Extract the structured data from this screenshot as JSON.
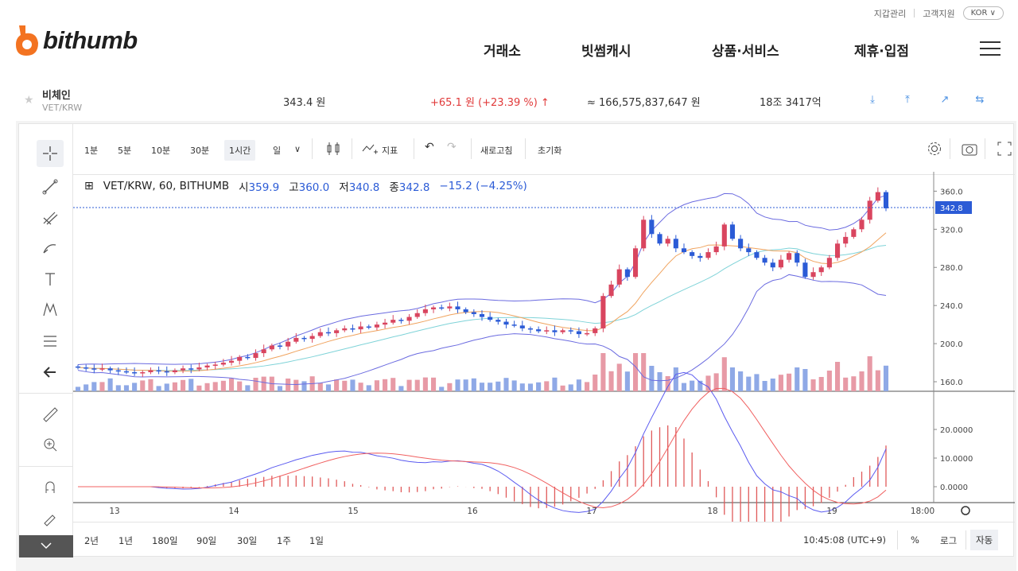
{
  "util": {
    "wallet": "지갑관리",
    "support": "고객지원",
    "lang": "KOR ∨"
  },
  "logo": {
    "text": "bithumb"
  },
  "nav": [
    "거래소",
    "빗썸캐시",
    "상품·서비스",
    "제휴·입점"
  ],
  "ticker": {
    "name": "비체인",
    "pair": "VET/KRW",
    "price": "343.4 원",
    "change": "+65.1 원 (+23.39 %) ↑",
    "amount": "≈ 166,575,837,647 원",
    "cap": "18조 3417억"
  },
  "toolbar": {
    "intervals": [
      "1분",
      "5분",
      "10분",
      "30분",
      "1시간",
      "일"
    ],
    "selected_interval": "1시간",
    "indicator": "지표",
    "refresh": "새로고침",
    "reset": "초기화"
  },
  "legend": {
    "symbol": "VET/KRW, 60, BITHUMB",
    "open_label": "시",
    "open": "359.9",
    "high_label": "고",
    "high": "360.0",
    "low_label": "저",
    "low": "340.8",
    "close_label": "종",
    "close": "342.8",
    "change": "−15.2 (−4.25%)"
  },
  "colors": {
    "up": "#d9455f",
    "down": "#2b5bd6",
    "accent": "#2b5bd6",
    "red": "#e13a3a"
  },
  "chart_data": {
    "type": "candlestick",
    "y_ticks": [
      "360.0",
      "320.0",
      "280.0",
      "240.0",
      "200.0",
      "160.0"
    ],
    "price_marker": "342.8",
    "macd_ticks": [
      "20.0000",
      "10.0000",
      "0.0000"
    ],
    "x_ticks": [
      "13",
      "14",
      "15",
      "16",
      "17",
      "18",
      "19",
      "18:00"
    ],
    "candles": [
      [
        176,
        175,
        176
      ],
      [
        175,
        174,
        174
      ],
      [
        174,
        173,
        173
      ],
      [
        173,
        174,
        174
      ],
      [
        174,
        172,
        172
      ],
      [
        172,
        171,
        171
      ],
      [
        171,
        170,
        170
      ],
      [
        170,
        169,
        169
      ],
      [
        169,
        170,
        170
      ],
      [
        170,
        172,
        172
      ],
      [
        172,
        171,
        171
      ],
      [
        171,
        170,
        170
      ],
      [
        170,
        172,
        172
      ],
      [
        172,
        174,
        174
      ],
      [
        174,
        173,
        173
      ],
      [
        173,
        175,
        175
      ],
      [
        175,
        177,
        177
      ],
      [
        177,
        178,
        178
      ],
      [
        178,
        180,
        180
      ],
      [
        180,
        182,
        182
      ],
      [
        182,
        186,
        186
      ],
      [
        186,
        185,
        185
      ],
      [
        185,
        190,
        190
      ],
      [
        190,
        194,
        194
      ],
      [
        194,
        198,
        198
      ],
      [
        198,
        197,
        197
      ],
      [
        197,
        202,
        202
      ],
      [
        202,
        206,
        206
      ],
      [
        206,
        205,
        205
      ],
      [
        205,
        208,
        208
      ],
      [
        208,
        212,
        212
      ],
      [
        212,
        211,
        211
      ],
      [
        211,
        214,
        214
      ],
      [
        214,
        216,
        216
      ],
      [
        216,
        215,
        215
      ],
      [
        215,
        218,
        218
      ],
      [
        218,
        217,
        217
      ],
      [
        217,
        220,
        220
      ],
      [
        220,
        222,
        222
      ],
      [
        222,
        225,
        225
      ],
      [
        225,
        224,
        224
      ],
      [
        224,
        228,
        228
      ],
      [
        228,
        232,
        232
      ],
      [
        232,
        236,
        236
      ],
      [
        236,
        238,
        238
      ],
      [
        238,
        237,
        237
      ],
      [
        237,
        239,
        239
      ],
      [
        239,
        236,
        236
      ],
      [
        236,
        233,
        233
      ],
      [
        233,
        231,
        231
      ],
      [
        231,
        228,
        228
      ],
      [
        228,
        225,
        225
      ],
      [
        225,
        223,
        223
      ],
      [
        223,
        220,
        220
      ],
      [
        220,
        219,
        219
      ],
      [
        219,
        216,
        216
      ],
      [
        216,
        215,
        215
      ],
      [
        215,
        213,
        213
      ],
      [
        213,
        214,
        214
      ],
      [
        214,
        212,
        212
      ],
      [
        212,
        214,
        214
      ],
      [
        214,
        213,
        213
      ],
      [
        213,
        210,
        210
      ],
      [
        210,
        211,
        211
      ],
      [
        211,
        216,
        216
      ],
      [
        216,
        250,
        250
      ],
      [
        250,
        262,
        262
      ],
      [
        262,
        278,
        278
      ],
      [
        278,
        270,
        270
      ],
      [
        270,
        300,
        300
      ],
      [
        300,
        330,
        330
      ],
      [
        330,
        315,
        315
      ],
      [
        315,
        305,
        305
      ],
      [
        305,
        310,
        310
      ],
      [
        310,
        300,
        300
      ],
      [
        300,
        296,
        296
      ],
      [
        296,
        292,
        292
      ],
      [
        292,
        290,
        290
      ],
      [
        290,
        296,
        296
      ],
      [
        296,
        302,
        302
      ],
      [
        302,
        325,
        325
      ],
      [
        325,
        310,
        310
      ],
      [
        310,
        300,
        300
      ],
      [
        300,
        296,
        296
      ],
      [
        296,
        290,
        290
      ],
      [
        290,
        285,
        285
      ],
      [
        285,
        280,
        280
      ],
      [
        280,
        288,
        288
      ],
      [
        288,
        295,
        295
      ],
      [
        295,
        285,
        285
      ],
      [
        285,
        270,
        270
      ],
      [
        270,
        275,
        275
      ],
      [
        275,
        280,
        280
      ],
      [
        280,
        290,
        290
      ],
      [
        290,
        305,
        305
      ],
      [
        305,
        312,
        312
      ],
      [
        312,
        320,
        320
      ],
      [
        320,
        330,
        330
      ],
      [
        330,
        350,
        350
      ],
      [
        350,
        359,
        359
      ],
      [
        359,
        342,
        342
      ]
    ]
  },
  "bottom": {
    "ranges": [
      "2년",
      "1년",
      "180일",
      "90일",
      "30일",
      "1주",
      "1일"
    ],
    "time": "10:45:08 (UTC+9)",
    "pct": "%",
    "log": "로그",
    "auto": "자동"
  }
}
